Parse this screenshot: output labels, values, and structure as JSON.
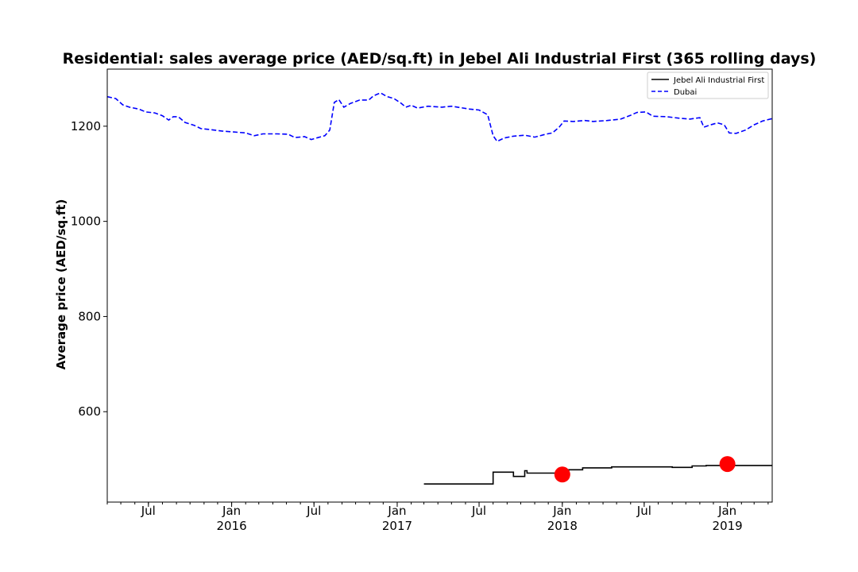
{
  "chart_data": {
    "type": "line",
    "title": "Residential: sales average price (AED/sq.ft) in Jebel Ali Industrial First (365 rolling days)",
    "xlabel": "",
    "ylabel": "Average price (AED/sq.ft)",
    "xlim": [
      "2015-04-01",
      "2019-04-10"
    ],
    "ylim": [
      410,
      1320
    ],
    "grid": false,
    "legend_position": "top-right",
    "y_ticks": [
      600,
      800,
      1000,
      1200
    ],
    "x_major_ticks": [
      {
        "date": "2015-07-01",
        "label": "Jul"
      },
      {
        "date": "2016-01-01",
        "label": "Jan\n2016"
      },
      {
        "date": "2016-07-01",
        "label": "Jul"
      },
      {
        "date": "2017-01-01",
        "label": "Jan\n2017"
      },
      {
        "date": "2017-07-01",
        "label": "Jul"
      },
      {
        "date": "2018-01-01",
        "label": "Jan\n2018"
      },
      {
        "date": "2018-07-01",
        "label": "Jul"
      },
      {
        "date": "2019-01-01",
        "label": "Jan\n2019"
      }
    ],
    "series": [
      {
        "name": "Jebel Ali Industrial First",
        "color": "#000000",
        "style": "solid-step",
        "points": [
          [
            "2017-03-01",
            448
          ],
          [
            "2017-08-01",
            448
          ],
          [
            "2017-08-01",
            473
          ],
          [
            "2017-09-15",
            473
          ],
          [
            "2017-09-15",
            464
          ],
          [
            "2017-10-10",
            464
          ],
          [
            "2017-10-10",
            476
          ],
          [
            "2017-10-15",
            476
          ],
          [
            "2017-10-15",
            471
          ],
          [
            "2018-01-15",
            471
          ],
          [
            "2018-01-15",
            478
          ],
          [
            "2018-02-15",
            478
          ],
          [
            "2018-02-15",
            482
          ],
          [
            "2018-04-20",
            482
          ],
          [
            "2018-04-20",
            484
          ],
          [
            "2018-09-01",
            484
          ],
          [
            "2018-09-01",
            483
          ],
          [
            "2018-10-15",
            483
          ],
          [
            "2018-10-15",
            486
          ],
          [
            "2018-11-15",
            486
          ],
          [
            "2018-11-15",
            487
          ],
          [
            "2019-04-10",
            487
          ]
        ]
      },
      {
        "name": "Dubai",
        "color": "#0000ff",
        "style": "dashed",
        "points": [
          [
            "2015-04-01",
            1262
          ],
          [
            "2015-04-20",
            1258
          ],
          [
            "2015-05-05",
            1245
          ],
          [
            "2015-05-20",
            1240
          ],
          [
            "2015-06-10",
            1236
          ],
          [
            "2015-06-25",
            1230
          ],
          [
            "2015-07-15",
            1228
          ],
          [
            "2015-08-01",
            1222
          ],
          [
            "2015-08-15",
            1213
          ],
          [
            "2015-08-25",
            1220
          ],
          [
            "2015-09-05",
            1220
          ],
          [
            "2015-09-20",
            1208
          ],
          [
            "2015-10-10",
            1202
          ],
          [
            "2015-10-25",
            1195
          ],
          [
            "2015-11-15",
            1193
          ],
          [
            "2015-12-10",
            1190
          ],
          [
            "2016-01-05",
            1188
          ],
          [
            "2016-02-01",
            1186
          ],
          [
            "2016-02-20",
            1180
          ],
          [
            "2016-03-10",
            1184
          ],
          [
            "2016-04-10",
            1184
          ],
          [
            "2016-05-05",
            1183
          ],
          [
            "2016-05-20",
            1176
          ],
          [
            "2016-06-10",
            1178
          ],
          [
            "2016-06-25",
            1172
          ],
          [
            "2016-07-10",
            1176
          ],
          [
            "2016-07-25",
            1180
          ],
          [
            "2016-08-05",
            1192
          ],
          [
            "2016-08-15",
            1250
          ],
          [
            "2016-08-25",
            1256
          ],
          [
            "2016-09-05",
            1240
          ],
          [
            "2016-09-20",
            1248
          ],
          [
            "2016-10-10",
            1255
          ],
          [
            "2016-10-30",
            1255
          ],
          [
            "2016-11-10",
            1264
          ],
          [
            "2016-11-25",
            1270
          ],
          [
            "2016-12-10",
            1262
          ],
          [
            "2016-12-25",
            1258
          ],
          [
            "2017-01-10",
            1248
          ],
          [
            "2017-01-20",
            1240
          ],
          [
            "2017-02-01",
            1244
          ],
          [
            "2017-02-15",
            1238
          ],
          [
            "2017-03-10",
            1242
          ],
          [
            "2017-04-10",
            1240
          ],
          [
            "2017-05-01",
            1242
          ],
          [
            "2017-06-10",
            1236
          ],
          [
            "2017-07-01",
            1234
          ],
          [
            "2017-07-20",
            1224
          ],
          [
            "2017-08-01",
            1180
          ],
          [
            "2017-08-10",
            1168
          ],
          [
            "2017-08-25",
            1175
          ],
          [
            "2017-09-15",
            1179
          ],
          [
            "2017-10-10",
            1181
          ],
          [
            "2017-11-01",
            1177
          ],
          [
            "2017-11-25",
            1183
          ],
          [
            "2017-12-10",
            1186
          ],
          [
            "2017-12-25",
            1198
          ],
          [
            "2018-01-05",
            1211
          ],
          [
            "2018-01-25",
            1210
          ],
          [
            "2018-02-20",
            1212
          ],
          [
            "2018-03-10",
            1210
          ],
          [
            "2018-04-10",
            1212
          ],
          [
            "2018-05-10",
            1215
          ],
          [
            "2018-06-01",
            1223
          ],
          [
            "2018-06-15",
            1229
          ],
          [
            "2018-07-05",
            1230
          ],
          [
            "2018-07-20",
            1221
          ],
          [
            "2018-08-20",
            1220
          ],
          [
            "2018-09-15",
            1217
          ],
          [
            "2018-10-10",
            1215
          ],
          [
            "2018-11-01",
            1218
          ],
          [
            "2018-11-10",
            1198
          ],
          [
            "2018-11-25",
            1203
          ],
          [
            "2018-12-10",
            1207
          ],
          [
            "2018-12-25",
            1203
          ],
          [
            "2019-01-05",
            1186
          ],
          [
            "2019-01-20",
            1185
          ],
          [
            "2019-02-10",
            1192
          ],
          [
            "2019-03-01",
            1203
          ],
          [
            "2019-03-20",
            1211
          ],
          [
            "2019-04-10",
            1216
          ]
        ]
      }
    ],
    "markers": [
      {
        "date": "2018-01-01",
        "value": 468,
        "color": "#ff0000"
      },
      {
        "date": "2019-01-01",
        "value": 490,
        "color": "#ff0000"
      }
    ]
  }
}
